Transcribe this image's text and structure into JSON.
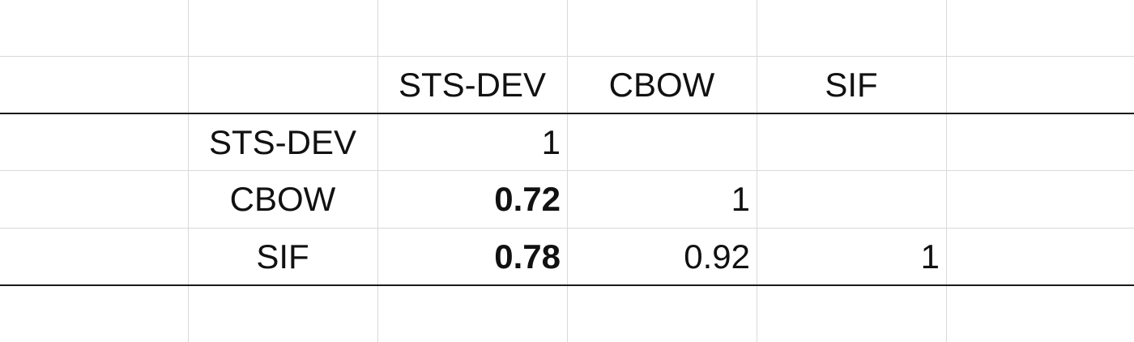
{
  "table": {
    "header": [
      "STS-DEV",
      "CBOW",
      "SIF"
    ],
    "rows": [
      {
        "label": "STS-DEV",
        "values": [
          "1",
          "",
          ""
        ]
      },
      {
        "label": "CBOW",
        "values": [
          "0.72",
          "1",
          ""
        ]
      },
      {
        "label": "SIF",
        "values": [
          "0.78",
          "0.92",
          "1"
        ]
      }
    ]
  }
}
